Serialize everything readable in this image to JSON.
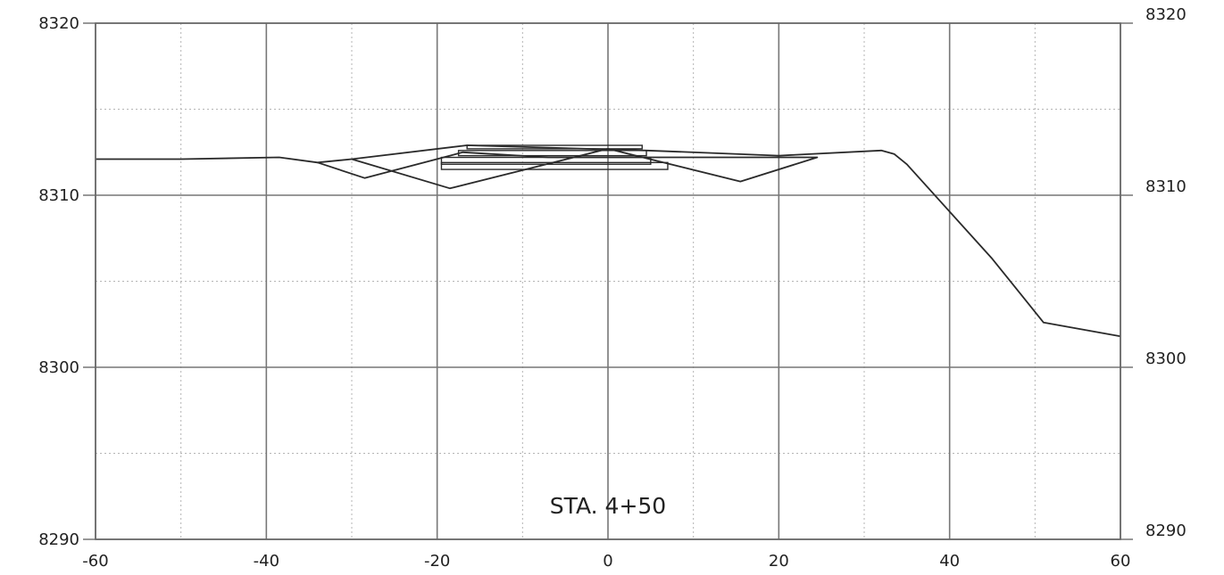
{
  "chart_data": {
    "type": "line",
    "title": "STA. 4+50",
    "xlabel": "",
    "ylabel": "",
    "xlim": [
      -60,
      60
    ],
    "ylim": [
      8290,
      8320
    ],
    "x_ticks": [
      -60,
      -40,
      -20,
      0,
      20,
      40,
      60
    ],
    "x_tick_labels": [
      "-60",
      "-40",
      "-20",
      "0",
      "20",
      "40",
      "60"
    ],
    "x_minor_ticks": [
      -50,
      -30,
      -10,
      10,
      30,
      50
    ],
    "y_ticks": [
      8290,
      8300,
      8310,
      8320
    ],
    "y_tick_labels": [
      "8290",
      "8300",
      "8310",
      "8320"
    ],
    "y_minor_ticks": [
      8295,
      8305,
      8315
    ],
    "grid": true,
    "legend": "none",
    "series": [
      {
        "values_xy": [
          [
            -60,
            8312.1
          ],
          [
            -50,
            8312.1
          ],
          [
            -38.5,
            8312.2
          ],
          [
            -34,
            8311.9
          ],
          [
            -30,
            8312.1
          ],
          [
            -16.5,
            8312.9
          ],
          [
            4.5,
            8312.6
          ],
          [
            20,
            8312.3
          ],
          [
            32,
            8312.6
          ],
          [
            33.5,
            8312.4
          ],
          [
            35,
            8311.8
          ],
          [
            45,
            8306.3
          ],
          [
            51,
            8302.6
          ],
          [
            60,
            8301.8
          ]
        ]
      },
      {
        "values_xy": [
          [
            -34,
            8311.9
          ],
          [
            -28.5,
            8311.0
          ],
          [
            -17,
            8312.5
          ],
          [
            -7,
            8312.2
          ],
          [
            24.5,
            8312.2
          ],
          [
            15.5,
            8310.8
          ],
          [
            0,
            8312.7
          ],
          [
            -18.5,
            8310.4
          ],
          [
            -30,
            8312.1
          ]
        ]
      }
    ],
    "pavement_layers": [
      {
        "x": [
          -16.5,
          4
        ],
        "y_top": 8312.9,
        "y_bottom": 8312.7
      },
      {
        "x": [
          -17.5,
          4.5
        ],
        "y_top": 8312.6,
        "y_bottom": 8312.3
      },
      {
        "x": [
          -19.5,
          5
        ],
        "y_top": 8312.2,
        "y_bottom": 8311.8
      },
      {
        "x": [
          -19.5,
          7
        ],
        "y_top": 8311.9,
        "y_bottom": 8311.5
      }
    ],
    "annotations": [
      {
        "text": "STA. 4+50",
        "x": 0,
        "y": 8291.5
      }
    ],
    "colors": {
      "line": "#2a2a2a",
      "grid": "#777777",
      "minor_grid": "#b5b5b5",
      "text": "#222222"
    }
  }
}
